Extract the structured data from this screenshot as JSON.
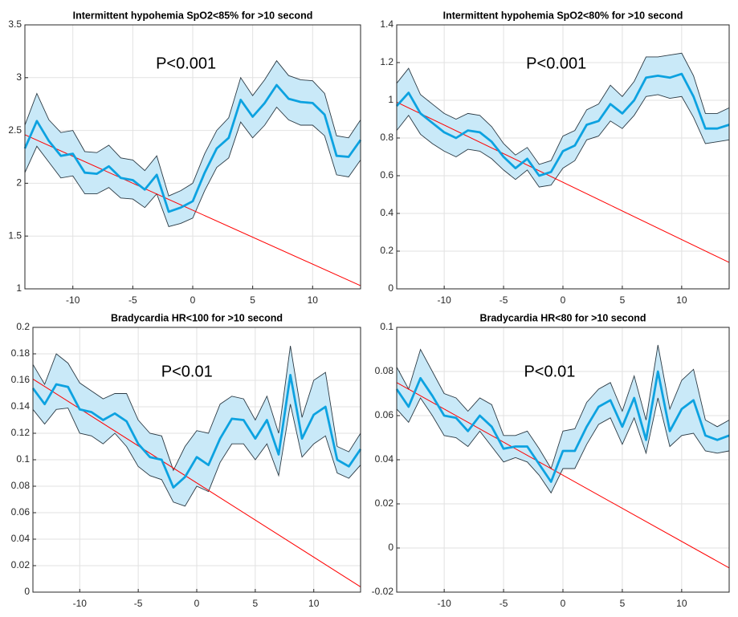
{
  "chart_data": [
    {
      "type": "line",
      "title": "Intermittent hypohemia SpO2<85% for >10 second",
      "annotation": "P<0.001",
      "x": [
        -14,
        -13,
        -12,
        -11,
        -10,
        -9,
        -8,
        -7,
        -6,
        -5,
        -4,
        -3,
        -2,
        -1,
        0,
        1,
        2,
        3,
        4,
        5,
        6,
        7,
        8,
        9,
        10,
        11,
        12,
        13,
        14
      ],
      "values": [
        2.33,
        2.59,
        2.4,
        2.26,
        2.28,
        2.1,
        2.09,
        2.16,
        2.05,
        2.03,
        1.94,
        2.08,
        1.73,
        1.77,
        1.83,
        2.1,
        2.33,
        2.43,
        2.79,
        2.63,
        2.76,
        2.93,
        2.8,
        2.77,
        2.76,
        2.65,
        2.26,
        2.25,
        2.41
      ],
      "color": "#0da2e0",
      "band": {
        "upper": [
          2.55,
          2.85,
          2.6,
          2.48,
          2.5,
          2.3,
          2.29,
          2.36,
          2.24,
          2.22,
          2.12,
          2.26,
          1.88,
          1.93,
          2.0,
          2.28,
          2.5,
          2.62,
          3.0,
          2.83,
          2.98,
          3.16,
          3.02,
          2.98,
          2.97,
          2.85,
          2.45,
          2.43,
          2.6
        ],
        "lower": [
          2.1,
          2.35,
          2.2,
          2.05,
          2.07,
          1.9,
          1.9,
          1.96,
          1.86,
          1.85,
          1.77,
          1.9,
          1.59,
          1.62,
          1.67,
          1.93,
          2.15,
          2.24,
          2.58,
          2.43,
          2.55,
          2.72,
          2.6,
          2.55,
          2.55,
          2.45,
          2.08,
          2.06,
          2.22
        ],
        "color": "#c9e9f8"
      },
      "trend": {
        "x": [
          -14,
          14
        ],
        "values": [
          2.46,
          1.03
        ],
        "color": "#ff0000"
      },
      "xlim": [
        -14,
        14
      ],
      "xticks": [
        -10,
        -5,
        0,
        5,
        10
      ],
      "ylim": [
        1,
        3.5
      ],
      "yticks": [
        1,
        1.5,
        2,
        2.5,
        3,
        3.5
      ],
      "grid": true
    },
    {
      "type": "line",
      "title": "Intermittent hypohemia SpO2<80% for >10 second",
      "annotation": "P<0.001",
      "x": [
        -14,
        -13,
        -12,
        -11,
        -10,
        -9,
        -8,
        -7,
        -6,
        -5,
        -4,
        -3,
        -2,
        -1,
        0,
        1,
        2,
        3,
        4,
        5,
        6,
        7,
        8,
        9,
        10,
        11,
        12,
        13,
        14
      ],
      "values": [
        0.97,
        1.04,
        0.93,
        0.88,
        0.83,
        0.8,
        0.84,
        0.83,
        0.78,
        0.7,
        0.64,
        0.69,
        0.6,
        0.62,
        0.73,
        0.76,
        0.87,
        0.89,
        0.98,
        0.93,
        1.0,
        1.12,
        1.13,
        1.12,
        1.14,
        1.02,
        0.85,
        0.85,
        0.87
      ],
      "color": "#0da2e0",
      "band": {
        "upper": [
          1.09,
          1.17,
          1.03,
          0.98,
          0.93,
          0.9,
          0.93,
          0.92,
          0.86,
          0.77,
          0.71,
          0.75,
          0.66,
          0.68,
          0.81,
          0.84,
          0.95,
          0.98,
          1.08,
          1.02,
          1.1,
          1.23,
          1.23,
          1.24,
          1.25,
          1.13,
          0.93,
          0.93,
          0.96
        ],
        "lower": [
          0.84,
          0.92,
          0.82,
          0.77,
          0.73,
          0.7,
          0.74,
          0.73,
          0.69,
          0.63,
          0.58,
          0.63,
          0.54,
          0.55,
          0.64,
          0.68,
          0.79,
          0.81,
          0.89,
          0.85,
          0.92,
          1.02,
          1.03,
          1.01,
          1.02,
          0.91,
          0.77,
          0.78,
          0.79
        ],
        "color": "#c9e9f8"
      },
      "trend": {
        "x": [
          -14,
          14
        ],
        "values": [
          0.99,
          0.14
        ],
        "color": "#ff0000"
      },
      "xlim": [
        -14,
        14
      ],
      "xticks": [
        -10,
        -5,
        0,
        5,
        10
      ],
      "ylim": [
        0,
        1.4
      ],
      "yticks": [
        0,
        0.2,
        0.4,
        0.6,
        0.8,
        1,
        1.2,
        1.4
      ],
      "grid": true
    },
    {
      "type": "line",
      "title": "Bradycardia HR<100 for >10 second",
      "annotation": "P<0.01",
      "x": [
        -14,
        -13,
        -12,
        -11,
        -10,
        -9,
        -8,
        -7,
        -6,
        -5,
        -4,
        -3,
        -2,
        -1,
        0,
        1,
        2,
        3,
        4,
        5,
        6,
        7,
        8,
        9,
        10,
        11,
        12,
        13,
        14
      ],
      "values": [
        0.154,
        0.142,
        0.157,
        0.155,
        0.138,
        0.136,
        0.13,
        0.135,
        0.129,
        0.112,
        0.102,
        0.1,
        0.079,
        0.087,
        0.102,
        0.096,
        0.116,
        0.131,
        0.13,
        0.116,
        0.13,
        0.104,
        0.164,
        0.116,
        0.134,
        0.14,
        0.1,
        0.095,
        0.108
      ],
      "color": "#0da2e0",
      "band": {
        "upper": [
          0.172,
          0.157,
          0.18,
          0.173,
          0.158,
          0.152,
          0.146,
          0.15,
          0.15,
          0.13,
          0.12,
          0.118,
          0.092,
          0.11,
          0.122,
          0.12,
          0.142,
          0.148,
          0.146,
          0.13,
          0.148,
          0.12,
          0.186,
          0.132,
          0.16,
          0.166,
          0.11,
          0.106,
          0.12
        ],
        "lower": [
          0.138,
          0.127,
          0.138,
          0.139,
          0.12,
          0.118,
          0.112,
          0.12,
          0.11,
          0.095,
          0.088,
          0.085,
          0.068,
          0.065,
          0.08,
          0.076,
          0.098,
          0.112,
          0.112,
          0.1,
          0.112,
          0.088,
          0.142,
          0.102,
          0.112,
          0.118,
          0.09,
          0.086,
          0.096
        ],
        "color": "#c9e9f8"
      },
      "trend": {
        "x": [
          -14,
          14
        ],
        "values": [
          0.161,
          0.004
        ],
        "color": "#ff0000"
      },
      "xlim": [
        -14,
        14
      ],
      "xticks": [
        -10,
        -5,
        0,
        5,
        10
      ],
      "ylim": [
        0,
        0.2
      ],
      "yticks": [
        0,
        0.02,
        0.04,
        0.06,
        0.08,
        0.1,
        0.12,
        0.14,
        0.16,
        0.18,
        0.2
      ],
      "grid": true
    },
    {
      "type": "line",
      "title": "Bradycardia HR<80 for >10 second",
      "annotation": "P<0.01",
      "x": [
        -14,
        -13,
        -12,
        -11,
        -10,
        -9,
        -8,
        -7,
        -6,
        -5,
        -4,
        -3,
        -2,
        -1,
        0,
        1,
        2,
        3,
        4,
        5,
        6,
        7,
        8,
        9,
        10,
        11,
        12,
        13,
        14
      ],
      "values": [
        0.072,
        0.064,
        0.077,
        0.069,
        0.06,
        0.059,
        0.053,
        0.06,
        0.055,
        0.045,
        0.046,
        0.046,
        0.038,
        0.03,
        0.044,
        0.044,
        0.055,
        0.064,
        0.067,
        0.055,
        0.068,
        0.049,
        0.08,
        0.053,
        0.063,
        0.067,
        0.051,
        0.049,
        0.051
      ],
      "color": "#0da2e0",
      "band": {
        "upper": [
          0.082,
          0.072,
          0.09,
          0.08,
          0.07,
          0.068,
          0.062,
          0.068,
          0.065,
          0.051,
          0.051,
          0.053,
          0.045,
          0.036,
          0.053,
          0.054,
          0.066,
          0.072,
          0.075,
          0.062,
          0.078,
          0.058,
          0.092,
          0.063,
          0.076,
          0.081,
          0.058,
          0.055,
          0.058
        ],
        "lower": [
          0.063,
          0.057,
          0.068,
          0.06,
          0.051,
          0.05,
          0.046,
          0.053,
          0.046,
          0.039,
          0.041,
          0.039,
          0.033,
          0.025,
          0.036,
          0.036,
          0.047,
          0.056,
          0.059,
          0.047,
          0.059,
          0.043,
          0.068,
          0.046,
          0.051,
          0.052,
          0.044,
          0.043,
          0.044
        ],
        "color": "#c9e9f8"
      },
      "trend": {
        "x": [
          -14,
          14
        ],
        "values": [
          0.075,
          -0.009
        ],
        "color": "#ff0000"
      },
      "xlim": [
        -14,
        14
      ],
      "xticks": [
        -10,
        -5,
        0,
        5,
        10
      ],
      "ylim": [
        -0.02,
        0.1
      ],
      "yticks": [
        -0.02,
        0,
        0.02,
        0.04,
        0.06,
        0.08,
        0.1
      ],
      "grid": true
    }
  ]
}
